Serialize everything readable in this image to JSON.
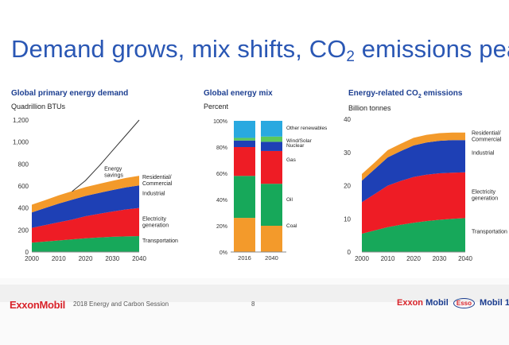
{
  "slide": {
    "title_main": "Demand grows, mix shifts, CO",
    "title_sub": "2",
    "title_tail": " emissions peak"
  },
  "footer": {
    "logo": "ExxonMobil",
    "session": "2018 Energy and Carbon Session",
    "page": "8",
    "brands": [
      "Exxon",
      "Mobil",
      "Esso",
      "Mobil 1"
    ]
  },
  "colors": {
    "transportation": "#17a85a",
    "electricity": "#ee1c25",
    "industrial": "#1e40b5",
    "residential": "#f39a2b",
    "coal": "#f39a2b",
    "oil": "#17a85a",
    "gas": "#ee1c25",
    "nuclear": "#1e40b5",
    "wind_solar": "#5cc85a",
    "other_renewables": "#29a9e0",
    "line": "#333333"
  },
  "chart_data": [
    {
      "type": "area",
      "title": "Global primary energy demand",
      "ylabel": "Quadrillion BTUs",
      "x": [
        2000,
        2005,
        2010,
        2015,
        2020,
        2025,
        2030,
        2035,
        2040
      ],
      "ylim": [
        0,
        1200
      ],
      "yticks": [
        "0",
        "200",
        "400",
        "600",
        "800",
        "1,000",
        "1,200"
      ],
      "xticks": [
        "2000",
        "2010",
        "2020",
        "2030",
        "2040"
      ],
      "stacked": true,
      "series": [
        {
          "name": "Transportation",
          "values": [
            85,
            95,
            105,
            115,
            125,
            132,
            138,
            142,
            145
          ]
        },
        {
          "name": "Electricity\ngeneration",
          "values": [
            135,
            150,
            165,
            180,
            200,
            215,
            230,
            245,
            255
          ]
        },
        {
          "name": "Industrial",
          "values": [
            140,
            155,
            170,
            180,
            185,
            190,
            195,
            200,
            205
          ]
        },
        {
          "name": "Residential/\nCommercial",
          "values": [
            70,
            72,
            75,
            78,
            80,
            82,
            84,
            86,
            88
          ]
        }
      ],
      "line": {
        "name": "Energy\nsavings",
        "x": [
          2015,
          2020,
          2025,
          2030,
          2035,
          2040
        ],
        "values": [
          550,
          650,
          780,
          920,
          1060,
          1200
        ]
      }
    },
    {
      "type": "bar",
      "title": "Global energy mix",
      "ylabel": "Percent",
      "categories": [
        "2016",
        "2040"
      ],
      "ylim": [
        0,
        100
      ],
      "yticks": [
        "0%",
        "20%",
        "40%",
        "60%",
        "80%",
        "100%"
      ],
      "stacked": true,
      "series": [
        {
          "name": "Coal",
          "values": [
            26,
            20
          ]
        },
        {
          "name": "Oil",
          "values": [
            32,
            32
          ]
        },
        {
          "name": "Gas",
          "values": [
            22,
            25
          ]
        },
        {
          "name": "Nuclear",
          "values": [
            5,
            7
          ]
        },
        {
          "name": "Wind/Solar",
          "values": [
            2,
            4
          ]
        },
        {
          "name": "Other renewables",
          "values": [
            13,
            12
          ]
        }
      ]
    },
    {
      "type": "area",
      "title": "Energy-related CO",
      "title_sub": "2",
      "title_tail": " emissions",
      "ylabel": "Billion tonnes",
      "x": [
        2000,
        2005,
        2010,
        2015,
        2020,
        2025,
        2030,
        2035,
        2040
      ],
      "ylim": [
        0,
        40
      ],
      "yticks": [
        "0",
        "10",
        "20",
        "30",
        "40"
      ],
      "xticks": [
        "2000",
        "2010",
        "2020",
        "2030",
        "2040"
      ],
      "stacked": true,
      "series": [
        {
          "name": "Transportation",
          "values": [
            5.5,
            6.5,
            7.5,
            8.2,
            8.8,
            9.3,
            9.7,
            10.0,
            10.2
          ]
        },
        {
          "name": "Electricity\ngeneration",
          "values": [
            9.5,
            11.0,
            12.5,
            13.2,
            13.8,
            14.0,
            14.0,
            13.9,
            13.8
          ]
        },
        {
          "name": "Industrial",
          "values": [
            6.5,
            7.5,
            8.5,
            9.0,
            9.5,
            9.7,
            9.8,
            9.8,
            9.7
          ]
        },
        {
          "name": "Residential/\nCommercial",
          "values": [
            2.0,
            2.0,
            2.2,
            2.2,
            2.3,
            2.3,
            2.3,
            2.3,
            2.3
          ]
        }
      ]
    }
  ]
}
